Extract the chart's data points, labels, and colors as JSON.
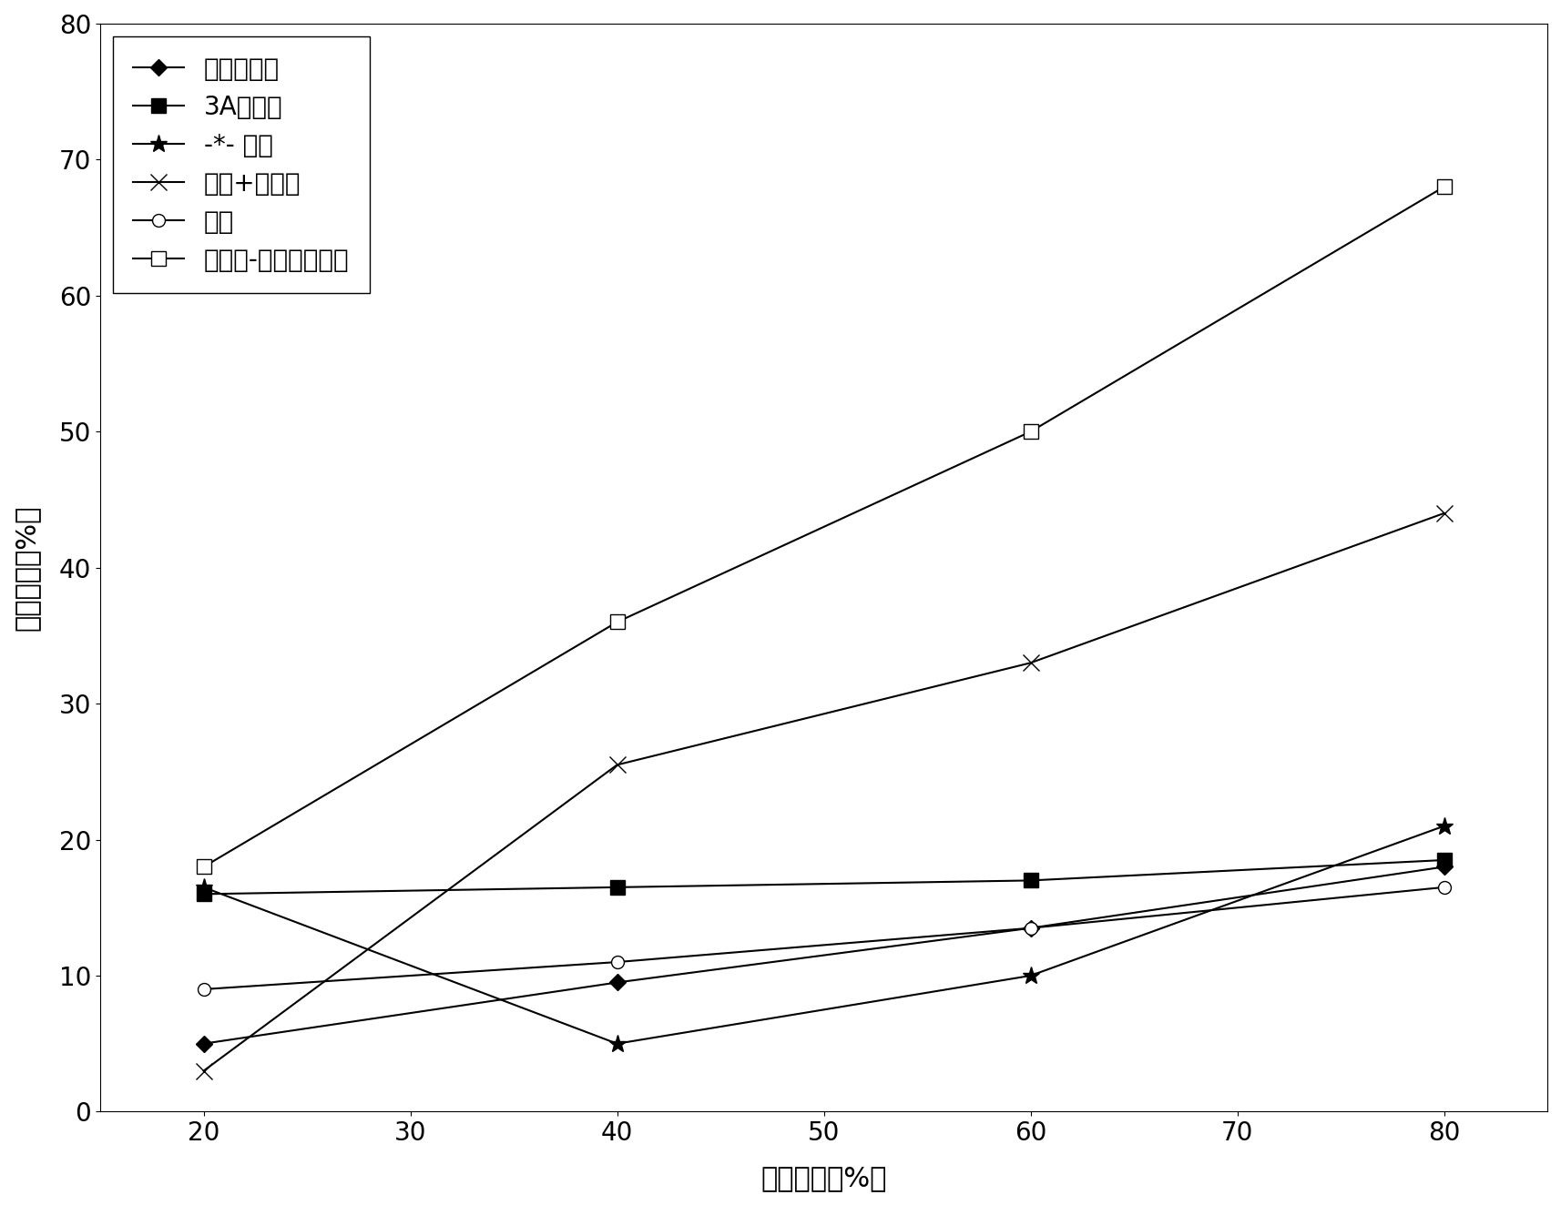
{
  "x": [
    20,
    40,
    60,
    80
  ],
  "series": [
    {
      "label": "中空干燥剂",
      "y": [
        5,
        9.5,
        13.5,
        18
      ],
      "marker": "D",
      "markersize": 9,
      "color": "black",
      "linestyle": "-",
      "markerfacecolor": "black",
      "markeredgecolor": "black",
      "linewidth": 1.5
    },
    {
      "label": "3A分子筛",
      "y": [
        16,
        16.5,
        17,
        18.5
      ],
      "marker": "s",
      "markersize": 11,
      "color": "black",
      "linestyle": "-",
      "markerfacecolor": "black",
      "markeredgecolor": "black",
      "linewidth": 1.5
    },
    {
      "label": "硅胶",
      "y": [
        16.5,
        5,
        10,
        21
      ],
      "marker": "*",
      "markersize": 14,
      "color": "black",
      "linestyle": "-",
      "markerfacecolor": "black",
      "markeredgecolor": "black",
      "linewidth": 1.5
    },
    {
      "label": "凹土+氯化钓",
      "y": [
        3,
        25.5,
        33,
        44
      ],
      "marker": "x",
      "markersize": 13,
      "color": "black",
      "linestyle": "-",
      "markerfacecolor": "black",
      "markeredgecolor": "black",
      "linewidth": 1.5
    },
    {
      "label": "凹土",
      "y": [
        9,
        11,
        13.5,
        16.5
      ],
      "marker": "o",
      "markersize": 10,
      "color": "black",
      "linestyle": "-",
      "markerfacecolor": "white",
      "markeredgecolor": "black",
      "linewidth": 1.5
    },
    {
      "label": "废酸液-凹凸棒石粘土",
      "y": [
        18,
        36,
        50,
        68
      ],
      "marker": "s",
      "markersize": 11,
      "color": "black",
      "linestyle": "-",
      "markerfacecolor": "white",
      "markeredgecolor": "black",
      "linewidth": 1.5
    }
  ],
  "legend_entries": [
    {
      "label": "中空干燥剂",
      "marker": "D",
      "mfc": "black",
      "mec": "black",
      "ms": 9,
      "ls": "-",
      "dashes_in_label": false
    },
    {
      "label": "3A分子筛",
      "marker": "s",
      "mfc": "black",
      "mec": "black",
      "ms": 11,
      "ls": "-",
      "dashes_in_label": false
    },
    {
      "label": "硅胶",
      "marker": "*",
      "mfc": "black",
      "mec": "black",
      "ms": 14,
      "ls": "-",
      "dashes_in_label": true
    },
    {
      "label": "凹土+氯化钓",
      "marker": "x",
      "mfc": "black",
      "mec": "black",
      "ms": 13,
      "ls": "-",
      "dashes_in_label": false
    },
    {
      "label": "凹土",
      "marker": "o",
      "mfc": "white",
      "mec": "black",
      "ms": 10,
      "ls": "-",
      "dashes_in_label": false
    },
    {
      "label": "废酸液-凹凸棒石粘土",
      "marker": "s",
      "mfc": "white",
      "mec": "black",
      "ms": 11,
      "ls": "-",
      "dashes_in_label": false
    }
  ],
  "xlabel": "相对湿度（%）",
  "ylabel": "吸附水量（%）",
  "xlim": [
    15,
    85
  ],
  "ylim": [
    0,
    80
  ],
  "xticks": [
    20,
    30,
    40,
    50,
    60,
    70,
    80
  ],
  "yticks": [
    0,
    10,
    20,
    30,
    40,
    50,
    60,
    70,
    80
  ],
  "figsize": [
    17.14,
    13.24
  ],
  "dpi": 100,
  "background_color": "#ffffff",
  "fontsize_labels": 22,
  "fontsize_ticks": 20,
  "fontsize_legend": 20
}
